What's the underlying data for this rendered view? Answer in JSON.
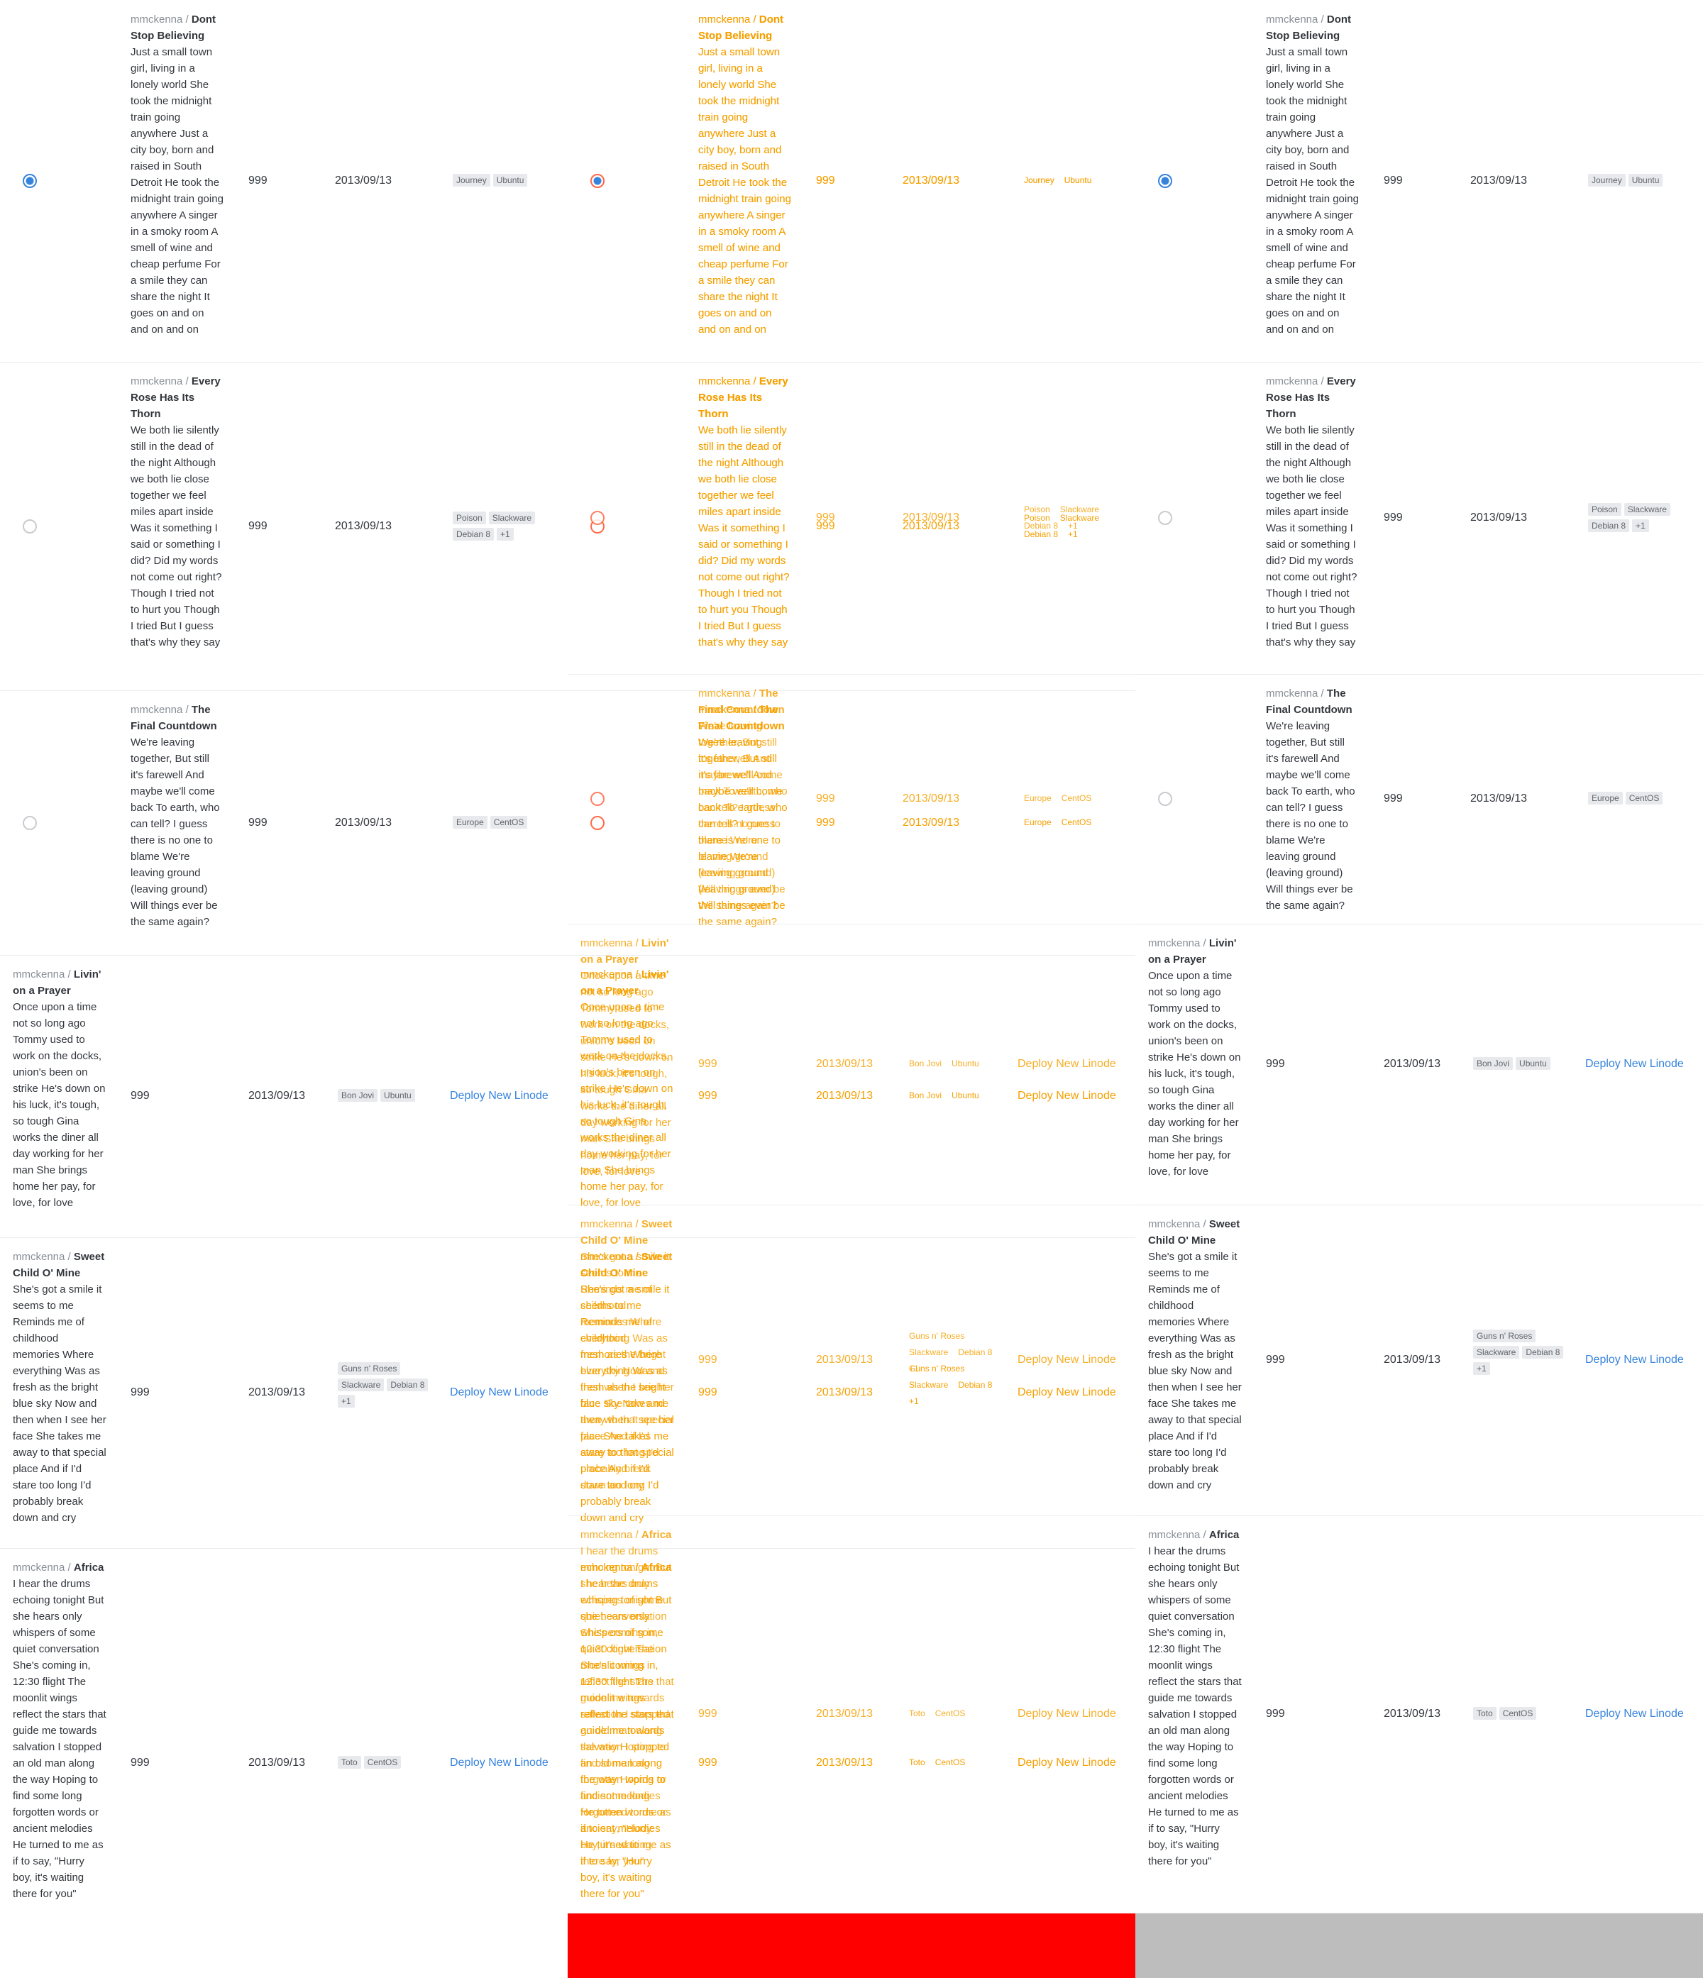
{
  "rows": [
    {
      "user": "mmckenna",
      "sep": " / ",
      "title": "Dont Stop Believing",
      "description": "Just a small town girl, living in a lonely world She took the midnight train going anywhere Just a city boy, born and raised in South Detroit He took the midnight train going anywhere A singer in a smoky room A smell of wine and cheap perfume For a smile they can share the night It goes on and on and on and on",
      "count": "999",
      "date": "2013/09/13",
      "tags": [
        "Journey",
        "Ubuntu"
      ],
      "extra": "",
      "selected": true,
      "action": ""
    },
    {
      "user": "mmckenna",
      "sep": " / ",
      "title": "Every Rose Has Its Thorn",
      "description": "We both lie silently still in the dead of the night Although we both lie close together we feel miles apart inside Was it something I said or something I did? Did my words not come out right? Though I tried not to hurt you Though I tried But I guess that's why they say",
      "count": "999",
      "date": "2013/09/13",
      "tags": [
        "Poison",
        "Slackware",
        "Debian 8"
      ],
      "extra": "+1",
      "selected": false,
      "action": ""
    },
    {
      "user": "mmckenna",
      "sep": " / ",
      "title": "The Final Countdown",
      "description": "We're leaving together, But still it's farewell And maybe we'll come back To earth, who can tell? I guess there is no one to blame We're leaving ground (leaving ground) Will things ever be the same again?",
      "count": "999",
      "date": "2013/09/13",
      "tags": [
        "Europe",
        "CentOS"
      ],
      "extra": "",
      "selected": false,
      "action": ""
    },
    {
      "user": "mmckenna",
      "sep": " / ",
      "title": "Livin' on a Prayer",
      "description": "Once upon a time not so long ago Tommy used to work on the docks, union's been on strike He's down on his luck, it's tough, so tough Gina works the diner all day working for her man She brings home her pay, for love, for love",
      "count": "999",
      "date": "2013/09/13",
      "tags": [
        "Bon Jovi",
        "Ubuntu"
      ],
      "extra": "",
      "selected": false,
      "action": "Deploy New Linode"
    },
    {
      "user": "mmckenna",
      "sep": " / ",
      "title": "Sweet Child O' Mine",
      "description": "She's got a smile it seems to me Reminds me of childhood memories Where everything Was as fresh as the bright blue sky Now and then when I see her face She takes me away to that special place And if I'd stare too long I'd probably break down and cry",
      "count": "999",
      "date": "2013/09/13",
      "tags": [
        "Guns n' Roses",
        "Slackware",
        "Debian 8"
      ],
      "extra": "+1",
      "selected": false,
      "action": "Deploy New Linode"
    },
    {
      "user": "mmckenna",
      "sep": " / ",
      "title": "Africa",
      "description": "I hear the drums echoing tonight But she hears only whispers of some quiet conversation She's coming in, 12:30 flight The moonlit wings reflect the stars that guide me towards salvation I stopped an old man along the way Hoping to find some long forgotten words or ancient melodies He turned to me as if to say, \"Hurry boy, it's waiting there for you\"",
      "count": "999",
      "date": "2013/09/13",
      "tags": [
        "Toto",
        "CentOS"
      ],
      "extra": "",
      "selected": false,
      "action": "Deploy New Linode"
    }
  ],
  "colors": {
    "accent": "#3683dc",
    "diff_text": "#f5a000",
    "diff_bg_block": "#ff0000",
    "grey_block": "#bdbdbd"
  }
}
